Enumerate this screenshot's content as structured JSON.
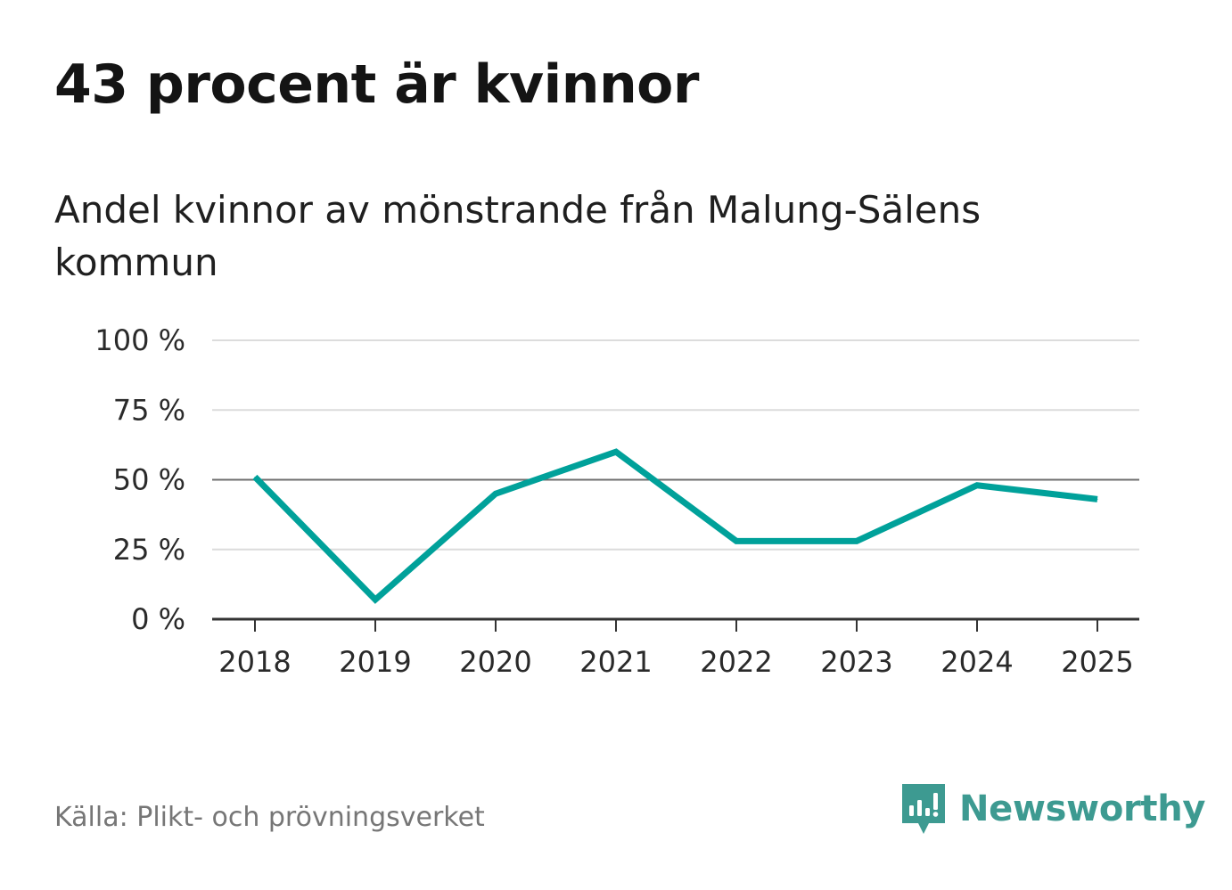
{
  "title": "43 procent är kvinnor",
  "subtitle": "Andel kvinnor av mönstrande från Malung-Sälens kommun",
  "source": "Källa: Plikt- och prövningsverket",
  "brand": {
    "name": "Newsworthy",
    "icon": "newsworthy-logo-icon"
  },
  "colors": {
    "line": "#00a19a",
    "reference": "#6e6e6e",
    "grid": "#dcdcdc",
    "axis": "#333333",
    "brand": "#3d9a91"
  },
  "chart_data": {
    "type": "line",
    "title": "43 procent är kvinnor",
    "xlabel": "",
    "ylabel": "",
    "categories": [
      "2018",
      "2019",
      "2020",
      "2021",
      "2022",
      "2023",
      "2024",
      "2025"
    ],
    "series": [
      {
        "name": "Andel kvinnor",
        "values": [
          51,
          7,
          45,
          60,
          28,
          28,
          48,
          43
        ]
      }
    ],
    "ylim": [
      0,
      100
    ],
    "yticks": [
      0,
      25,
      50,
      75,
      100
    ],
    "ytick_labels": [
      "0 %",
      "25 %",
      "50 %",
      "75 %",
      "100 %"
    ],
    "reference_line": 50,
    "grid": true
  }
}
